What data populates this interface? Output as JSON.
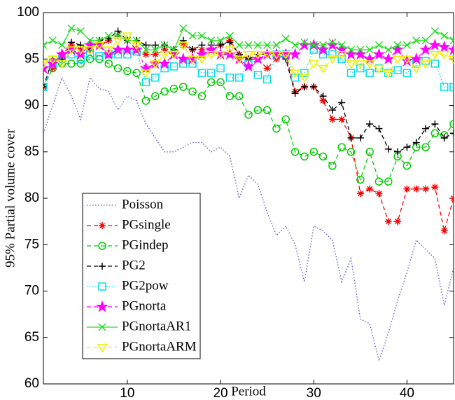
{
  "chart_data": {
    "type": "line",
    "xlabel": "Period",
    "ylabel": "95% Partial volume cover",
    "x": [
      1,
      2,
      3,
      4,
      5,
      6,
      7,
      8,
      9,
      10,
      11,
      12,
      13,
      14,
      15,
      16,
      17,
      18,
      19,
      20,
      21,
      22,
      23,
      24,
      25,
      26,
      27,
      28,
      29,
      30,
      31,
      32,
      33,
      34,
      35,
      36,
      37,
      38,
      39,
      40,
      41,
      42,
      43,
      44,
      45
    ],
    "xlim": [
      1,
      45
    ],
    "xticks": [
      10,
      20,
      30,
      40
    ],
    "ylim": [
      60,
      100
    ],
    "yticks": [
      60,
      65,
      70,
      75,
      80,
      85,
      90,
      95,
      100
    ],
    "legend": "lower left",
    "series": [
      {
        "name": "Poisson",
        "color": "#5555cc",
        "linestyle": "dotted",
        "marker": "none",
        "values": [
          87,
          90,
          93,
          91,
          88.5,
          93,
          91.8,
          91.5,
          89.5,
          91,
          90.5,
          88,
          86.5,
          85,
          85,
          85.5,
          86,
          86,
          85,
          85.5,
          84.5,
          80,
          82.5,
          81.5,
          78.5,
          76,
          77,
          75,
          71,
          77,
          76.5,
          75.5,
          71,
          73.5,
          67,
          66.5,
          62.5,
          65.5,
          69,
          72,
          75.5,
          74.5,
          73.5,
          68.5,
          72.5
        ]
      },
      {
        "name": "PGsingle",
        "color": "#ff0000",
        "linestyle": "dashed",
        "marker": "asterisk",
        "values": [
          92,
          94,
          95.5,
          96.5,
          96,
          96,
          96.5,
          97,
          97.5,
          97,
          96,
          95.5,
          95.5,
          96,
          95.5,
          96.5,
          96,
          96,
          96,
          96.5,
          97,
          95.5,
          95,
          95,
          94,
          95,
          95.5,
          91.5,
          92,
          92,
          90.5,
          88.5,
          88.5,
          86.5,
          80.5,
          81,
          80.5,
          77.5,
          77.5,
          81,
          81,
          81,
          81.2,
          76.5,
          80
        ]
      },
      {
        "name": "PGindep",
        "color": "#00cc00",
        "linestyle": "dashed",
        "marker": "circle",
        "values": [
          92,
          94,
          94.5,
          94.5,
          94.5,
          95,
          95,
          94.5,
          94,
          93.7,
          93.5,
          90.5,
          91,
          91.5,
          91.8,
          92,
          91.5,
          91,
          92.5,
          92.5,
          91,
          91,
          89,
          89.5,
          89.5,
          87.5,
          88.5,
          85,
          84.5,
          85,
          84.5,
          83.5,
          85.5,
          85,
          82,
          85,
          81.8,
          81.8,
          84.5,
          83.5,
          85.5,
          85.5,
          87,
          86.8,
          88
        ]
      },
      {
        "name": "PG2",
        "color": "#000000",
        "linestyle": "dashed",
        "marker": "plus",
        "values": [
          92,
          95,
          95,
          96.8,
          96.5,
          96,
          97,
          97.2,
          98,
          97,
          97,
          96.5,
          96.5,
          96.5,
          96,
          97,
          96,
          96.5,
          96.5,
          96.5,
          96.8,
          95.5,
          95,
          95.5,
          95.5,
          95.5,
          95,
          91.3,
          92,
          92,
          91,
          89.5,
          90.3,
          86.5,
          86.5,
          88,
          87.5,
          85.3,
          85,
          85.5,
          86,
          87.5,
          88,
          86.5,
          87
        ]
      },
      {
        "name": "PG2pow",
        "color": "#00ddee",
        "linestyle": "dotted",
        "marker": "square",
        "values": [
          92,
          94.5,
          95,
          95.5,
          95,
          95.5,
          95.3,
          95.5,
          95.5,
          95.5,
          95.8,
          92.5,
          93,
          94,
          94.2,
          94.5,
          94.5,
          93.5,
          93.5,
          94,
          93,
          93,
          94.5,
          93.3,
          92.8,
          95.5,
          95.5,
          93,
          93.5,
          96,
          95.5,
          95.5,
          95,
          93.5,
          94,
          93.5,
          94,
          93.5,
          93.8,
          93.5,
          94.5,
          94.8,
          94.5,
          92,
          92
        ]
      },
      {
        "name": "PGnorta",
        "color": "#ff00ff",
        "linestyle": "dashed",
        "marker": "star",
        "values": [
          94,
          94.5,
          95.5,
          96,
          95.5,
          96.5,
          96.5,
          95.5,
          96,
          96,
          96,
          94,
          94.5,
          94.5,
          95.5,
          95,
          95,
          95.5,
          96,
          95.5,
          95.5,
          95,
          94.2,
          95,
          95.5,
          95.5,
          95.5,
          95.5,
          96.5,
          96.5,
          96,
          96.5,
          96,
          95.5,
          95.5,
          95,
          95.5,
          95,
          96,
          94.8,
          95,
          96,
          96.5,
          96.3,
          96
        ]
      },
      {
        "name": "PGnortaAR1",
        "color": "#22dd22",
        "linestyle": "solid",
        "marker": "x",
        "values": [
          96.5,
          97,
          96.5,
          98.3,
          98,
          97,
          97,
          97.5,
          97.5,
          97,
          97,
          96,
          96,
          96.5,
          96,
          98.3,
          97.5,
          97.5,
          97,
          97,
          97.5,
          96.5,
          96.5,
          96.5,
          96.5,
          96.5,
          97.2,
          96.5,
          96.8,
          96.5,
          96.5,
          96.8,
          96.5,
          96,
          96,
          96,
          96.5,
          96,
          96.5,
          96.5,
          97,
          97,
          98,
          97.5,
          97
        ]
      },
      {
        "name": "PGnortaARM",
        "color": "#eeee00",
        "linestyle": "dashed",
        "marker": "triangle-down",
        "values": [
          94.5,
          95,
          94.5,
          96,
          96,
          96,
          96.5,
          96,
          97,
          97.5,
          96.5,
          93.5,
          94.5,
          95.5,
          95.5,
          96.5,
          95,
          95,
          95.5,
          95.5,
          96,
          95,
          95.5,
          95.5,
          95.5,
          95.5,
          95.5,
          93.5,
          93,
          94.5,
          94,
          95,
          95.5,
          94.5,
          94.5,
          94.5,
          94,
          93.5,
          95,
          95,
          94,
          94.5,
          95.5,
          95.5,
          95
        ]
      }
    ]
  }
}
